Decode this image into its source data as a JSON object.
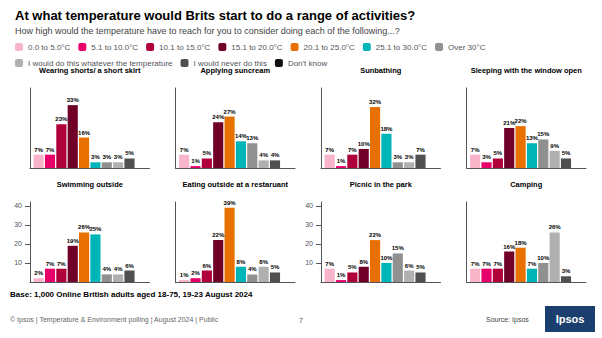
{
  "title": "At what temperature would Brits start to do a range of activities?",
  "subtitle": "How high would the temperature have to reach for you to consider doing each of the following...?",
  "annotations": [
    "Base: 1,000 Online British adults aged 18-75, 19-23 August 2024",
    "© Ipsos | Temperature & Environment polling | August 2024 | Public",
    "7",
    "Source: Ipsos",
    "Ipsos"
  ],
  "chart_data": [
    {
      "type": "bar",
      "title": "Wearing shorts/ a short skirt",
      "categories": [
        null
      ],
      "ylim": [
        0,
        42
      ],
      "tick_labels": false,
      "grid": false,
      "data_labels": true,
      "series": [
        {
          "name": "0.0 to 5.0°C",
          "color": "#f8b4c8",
          "values": [
            7
          ],
          "value_labels": [
            "7%"
          ]
        },
        {
          "name": "5.1 to 10.0°C",
          "color": "#e8006a",
          "values": [
            7
          ],
          "value_labels": [
            "7%"
          ]
        },
        {
          "name": "10.1 to 15.0°C",
          "color": "#b0003a",
          "values": [
            23
          ],
          "value_labels": [
            "23%"
          ]
        },
        {
          "name": "15.1 to 20.0°C",
          "color": "#700028",
          "values": [
            33
          ],
          "value_labels": [
            "33%"
          ]
        },
        {
          "name": "20.1 to 25.0°C",
          "color": "#e87000",
          "values": [
            16
          ],
          "value_labels": [
            "16%"
          ]
        },
        {
          "name": "25.1 to 30.0°C",
          "color": "#00b5b8",
          "values": [
            3
          ],
          "value_labels": [
            "3%"
          ]
        },
        {
          "name": "Over 30°C",
          "color": "#909090",
          "values": [
            3
          ],
          "value_labels": [
            "3%"
          ]
        },
        {
          "name": "I would do this whatever the temperature",
          "color": "#b0b0b0",
          "values": [
            3
          ],
          "value_labels": [
            "3%"
          ]
        },
        {
          "name": "I would never do this",
          "color": "#505050",
          "values": [
            5
          ],
          "value_labels": [
            "5%"
          ]
        },
        {
          "name": "Don't know",
          "color": "#111111",
          "values": [
            null
          ],
          "value_labels": [
            null
          ]
        }
      ]
    },
    {
      "type": "bar",
      "title": "Applying suncream",
      "categories": [
        null
      ],
      "ylim": [
        0,
        42
      ],
      "tick_labels": false,
      "grid": false,
      "data_labels": true,
      "series": [
        {
          "name": "0.0 to 5.0°C",
          "color": "#f8b4c8",
          "values": [
            7
          ],
          "value_labels": [
            "7%"
          ]
        },
        {
          "name": "5.1 to 10.0°C",
          "color": "#e8006a",
          "values": [
            1
          ],
          "value_labels": [
            "1%"
          ]
        },
        {
          "name": "10.1 to 15.0°C",
          "color": "#b0003a",
          "values": [
            5
          ],
          "value_labels": [
            "5%"
          ]
        },
        {
          "name": "15.1 to 20.0°C",
          "color": "#700028",
          "values": [
            24
          ],
          "value_labels": [
            "24%"
          ]
        },
        {
          "name": "20.1 to 25.0°C",
          "color": "#e87000",
          "values": [
            27
          ],
          "value_labels": [
            "27%"
          ]
        },
        {
          "name": "25.1 to 30.0°C",
          "color": "#00b5b8",
          "values": [
            14
          ],
          "value_labels": [
            "14%"
          ]
        },
        {
          "name": "Over 30°C",
          "color": "#909090",
          "values": [
            13
          ],
          "value_labels": [
            "13%"
          ]
        },
        {
          "name": "I would do this whatever the temperature",
          "color": "#b0b0b0",
          "values": [
            4
          ],
          "value_labels": [
            "4%"
          ]
        },
        {
          "name": "I would never do this",
          "color": "#505050",
          "values": [
            4
          ],
          "value_labels": [
            "4%"
          ]
        },
        {
          "name": "Don't know",
          "color": "#111111",
          "values": [
            null
          ],
          "value_labels": [
            null
          ]
        }
      ]
    },
    {
      "type": "bar",
      "title": "Sunbathing",
      "categories": [
        null
      ],
      "ylim": [
        0,
        42
      ],
      "tick_labels": false,
      "grid": false,
      "data_labels": true,
      "series": [
        {
          "name": "0.0 to 5.0°C",
          "color": "#f8b4c8",
          "values": [
            7
          ],
          "value_labels": [
            "7%"
          ]
        },
        {
          "name": "5.1 to 10.0°C",
          "color": "#e8006a",
          "values": [
            1
          ],
          "value_labels": [
            "1%"
          ]
        },
        {
          "name": "10.1 to 15.0°C",
          "color": "#b0003a",
          "values": [
            7
          ],
          "value_labels": [
            "7%"
          ]
        },
        {
          "name": "15.1 to 20.0°C",
          "color": "#700028",
          "values": [
            10
          ],
          "value_labels": [
            "10%"
          ]
        },
        {
          "name": "20.1 to 25.0°C",
          "color": "#e87000",
          "values": [
            32
          ],
          "value_labels": [
            "32%"
          ]
        },
        {
          "name": "25.1 to 30.0°C",
          "color": "#00b5b8",
          "values": [
            18
          ],
          "value_labels": [
            "18%"
          ]
        },
        {
          "name": "Over 30°C",
          "color": "#909090",
          "values": [
            3
          ],
          "value_labels": [
            "3%"
          ]
        },
        {
          "name": "I would do this whatever the temperature",
          "color": "#b0b0b0",
          "values": [
            3
          ],
          "value_labels": [
            "3%"
          ]
        },
        {
          "name": "I would never do this",
          "color": "#505050",
          "values": [
            7
          ],
          "value_labels": [
            "7%"
          ]
        },
        {
          "name": "Don't know",
          "color": "#111111",
          "values": [
            null
          ],
          "value_labels": [
            null
          ]
        }
      ]
    },
    {
      "type": "bar",
      "title": "Sleeping with the window open",
      "categories": [
        null
      ],
      "ylim": [
        0,
        42
      ],
      "tick_labels": false,
      "grid": false,
      "data_labels": true,
      "series": [
        {
          "name": "0.0 to 5.0°C",
          "color": "#f8b4c8",
          "values": [
            7
          ],
          "value_labels": [
            "7%"
          ]
        },
        {
          "name": "5.1 to 10.0°C",
          "color": "#e8006a",
          "values": [
            3
          ],
          "value_labels": [
            "3%"
          ]
        },
        {
          "name": "10.1 to 15.0°C",
          "color": "#b0003a",
          "values": [
            5
          ],
          "value_labels": [
            "5%"
          ]
        },
        {
          "name": "15.1 to 20.0°C",
          "color": "#700028",
          "values": [
            21
          ],
          "value_labels": [
            "21%"
          ]
        },
        {
          "name": "20.1 to 25.0°C",
          "color": "#e87000",
          "values": [
            22
          ],
          "value_labels": [
            "22%"
          ]
        },
        {
          "name": "25.1 to 30.0°C",
          "color": "#00b5b8",
          "values": [
            13
          ],
          "value_labels": [
            "13%"
          ]
        },
        {
          "name": "Over 30°C",
          "color": "#909090",
          "values": [
            15
          ],
          "value_labels": [
            "15%"
          ]
        },
        {
          "name": "I would do this whatever the temperature",
          "color": "#b0b0b0",
          "values": [
            9
          ],
          "value_labels": [
            "9%"
          ]
        },
        {
          "name": "I would never do this",
          "color": "#505050",
          "values": [
            5
          ],
          "value_labels": [
            "5%"
          ]
        },
        {
          "name": "Don't know",
          "color": "#111111",
          "values": [
            null
          ],
          "value_labels": [
            null
          ]
        }
      ]
    },
    {
      "type": "bar",
      "title": "Swimming outside",
      "categories": [
        null
      ],
      "ylim": [
        0,
        42
      ],
      "yticks": [
        10,
        20,
        30,
        40
      ],
      "tick_labels": "y",
      "grid": false,
      "data_labels": true,
      "series": [
        {
          "name": "0.0 to 5.0°C",
          "color": "#f8b4c8",
          "values": [
            2
          ],
          "value_labels": [
            "2%"
          ]
        },
        {
          "name": "5.1 to 10.0°C",
          "color": "#e8006a",
          "values": [
            7
          ],
          "value_labels": [
            "7%"
          ]
        },
        {
          "name": "10.1 to 15.0°C",
          "color": "#b0003a",
          "values": [
            7
          ],
          "value_labels": [
            "7%"
          ]
        },
        {
          "name": "15.1 to 20.0°C",
          "color": "#700028",
          "values": [
            19
          ],
          "value_labels": [
            "19%"
          ]
        },
        {
          "name": "20.1 to 25.0°C",
          "color": "#e87000",
          "values": [
            26
          ],
          "value_labels": [
            "26%"
          ]
        },
        {
          "name": "25.1 to 30.0°C",
          "color": "#00b5b8",
          "values": [
            25
          ],
          "value_labels": [
            "25%"
          ]
        },
        {
          "name": "Over 30°C",
          "color": "#909090",
          "values": [
            4
          ],
          "value_labels": [
            "4%"
          ]
        },
        {
          "name": "I would do this whatever the temperature",
          "color": "#b0b0b0",
          "values": [
            4
          ],
          "value_labels": [
            "4%"
          ]
        },
        {
          "name": "I would never do this",
          "color": "#505050",
          "values": [
            6
          ],
          "value_labels": [
            "6%"
          ]
        },
        {
          "name": "Don't know",
          "color": "#111111",
          "values": [
            null
          ],
          "value_labels": [
            null
          ]
        }
      ]
    },
    {
      "type": "bar",
      "title": "Eating outside at a restaruant",
      "categories": [
        null
      ],
      "ylim": [
        0,
        42
      ],
      "tick_labels": false,
      "grid": false,
      "data_labels": true,
      "series": [
        {
          "name": "0.0 to 5.0°C",
          "color": "#f8b4c8",
          "values": [
            1
          ],
          "value_labels": [
            "1%"
          ]
        },
        {
          "name": "5.1 to 10.0°C",
          "color": "#e8006a",
          "values": [
            2
          ],
          "value_labels": [
            "2%"
          ]
        },
        {
          "name": "10.1 to 15.0°C",
          "color": "#b0003a",
          "values": [
            6
          ],
          "value_labels": [
            "6%"
          ]
        },
        {
          "name": "15.1 to 20.0°C",
          "color": "#700028",
          "values": [
            22
          ],
          "value_labels": [
            "22%"
          ]
        },
        {
          "name": "20.1 to 25.0°C",
          "color": "#e87000",
          "values": [
            39
          ],
          "value_labels": [
            "39%"
          ]
        },
        {
          "name": "25.1 to 30.0°C",
          "color": "#00b5b8",
          "values": [
            8
          ],
          "value_labels": [
            "8%"
          ]
        },
        {
          "name": "Over 30°C",
          "color": "#909090",
          "values": [
            4
          ],
          "value_labels": [
            "4%"
          ]
        },
        {
          "name": "I would do this whatever the temperature",
          "color": "#b0b0b0",
          "values": [
            8
          ],
          "value_labels": [
            "8%"
          ]
        },
        {
          "name": "I would never do this",
          "color": "#505050",
          "values": [
            5
          ],
          "value_labels": [
            "5%"
          ]
        },
        {
          "name": "Don't know",
          "color": "#111111",
          "values": [
            null
          ],
          "value_labels": [
            null
          ]
        }
      ]
    },
    {
      "type": "bar",
      "title": "Picnic in the park",
      "categories": [
        null
      ],
      "ylim": [
        0,
        42
      ],
      "yticks": [
        10,
        20,
        30,
        40
      ],
      "tick_labels": "y",
      "grid": false,
      "data_labels": true,
      "series": [
        {
          "name": "0.0 to 5.0°C",
          "color": "#f8b4c8",
          "values": [
            7
          ],
          "value_labels": [
            "7%"
          ]
        },
        {
          "name": "5.1 to 10.0°C",
          "color": "#e8006a",
          "values": [
            1
          ],
          "value_labels": [
            "1%"
          ]
        },
        {
          "name": "10.1 to 15.0°C",
          "color": "#b0003a",
          "values": [
            5
          ],
          "value_labels": [
            "5%"
          ]
        },
        {
          "name": "15.1 to 20.0°C",
          "color": "#700028",
          "values": [
            8
          ],
          "value_labels": [
            "8%"
          ]
        },
        {
          "name": "20.1 to 25.0°C",
          "color": "#e87000",
          "values": [
            22
          ],
          "value_labels": [
            "22%"
          ]
        },
        {
          "name": "25.1 to 30.0°C",
          "color": "#00b5b8",
          "values": [
            10
          ],
          "value_labels": [
            "10%"
          ]
        },
        {
          "name": "Over 30°C",
          "color": "#909090",
          "values": [
            15
          ],
          "value_labels": [
            "15%"
          ]
        },
        {
          "name": "I would do this whatever the temperature",
          "color": "#b0b0b0",
          "values": [
            6
          ],
          "value_labels": [
            "6%"
          ]
        },
        {
          "name": "I would never do this",
          "color": "#505050",
          "values": [
            5
          ],
          "value_labels": [
            "5%"
          ]
        },
        {
          "name": "Don't know",
          "color": "#111111",
          "values": [
            null
          ],
          "value_labels": [
            null
          ]
        }
      ]
    },
    {
      "type": "bar",
      "title": "Camping",
      "categories": [
        null
      ],
      "ylim": [
        0,
        42
      ],
      "tick_labels": false,
      "grid": false,
      "data_labels": true,
      "series": [
        {
          "name": "0.0 to 5.0°C",
          "color": "#f8b4c8",
          "values": [
            7
          ],
          "value_labels": [
            "7%"
          ]
        },
        {
          "name": "5.1 to 10.0°C",
          "color": "#e8006a",
          "values": [
            7
          ],
          "value_labels": [
            "7%"
          ]
        },
        {
          "name": "10.1 to 15.0°C",
          "color": "#b0003a",
          "values": [
            7
          ],
          "value_labels": [
            "7%"
          ]
        },
        {
          "name": "15.1 to 20.0°C",
          "color": "#700028",
          "values": [
            16
          ],
          "value_labels": [
            "16%"
          ]
        },
        {
          "name": "20.1 to 25.0°C",
          "color": "#e87000",
          "values": [
            18
          ],
          "value_labels": [
            "18%"
          ]
        },
        {
          "name": "25.1 to 30.0°C",
          "color": "#00b5b8",
          "values": [
            7
          ],
          "value_labels": [
            "7%"
          ]
        },
        {
          "name": "Over 30°C",
          "color": "#909090",
          "values": [
            10
          ],
          "value_labels": [
            "10%"
          ]
        },
        {
          "name": "I would do this whatever the temperature",
          "color": "#b0b0b0",
          "values": [
            26
          ],
          "value_labels": [
            "26%"
          ]
        },
        {
          "name": "I would never do this",
          "color": "#505050",
          "values": [
            3
          ],
          "value_labels": [
            "3%"
          ]
        },
        {
          "name": "Don't know",
          "color": "#111111",
          "values": [
            null
          ],
          "value_labels": [
            null
          ]
        }
      ]
    }
  ]
}
